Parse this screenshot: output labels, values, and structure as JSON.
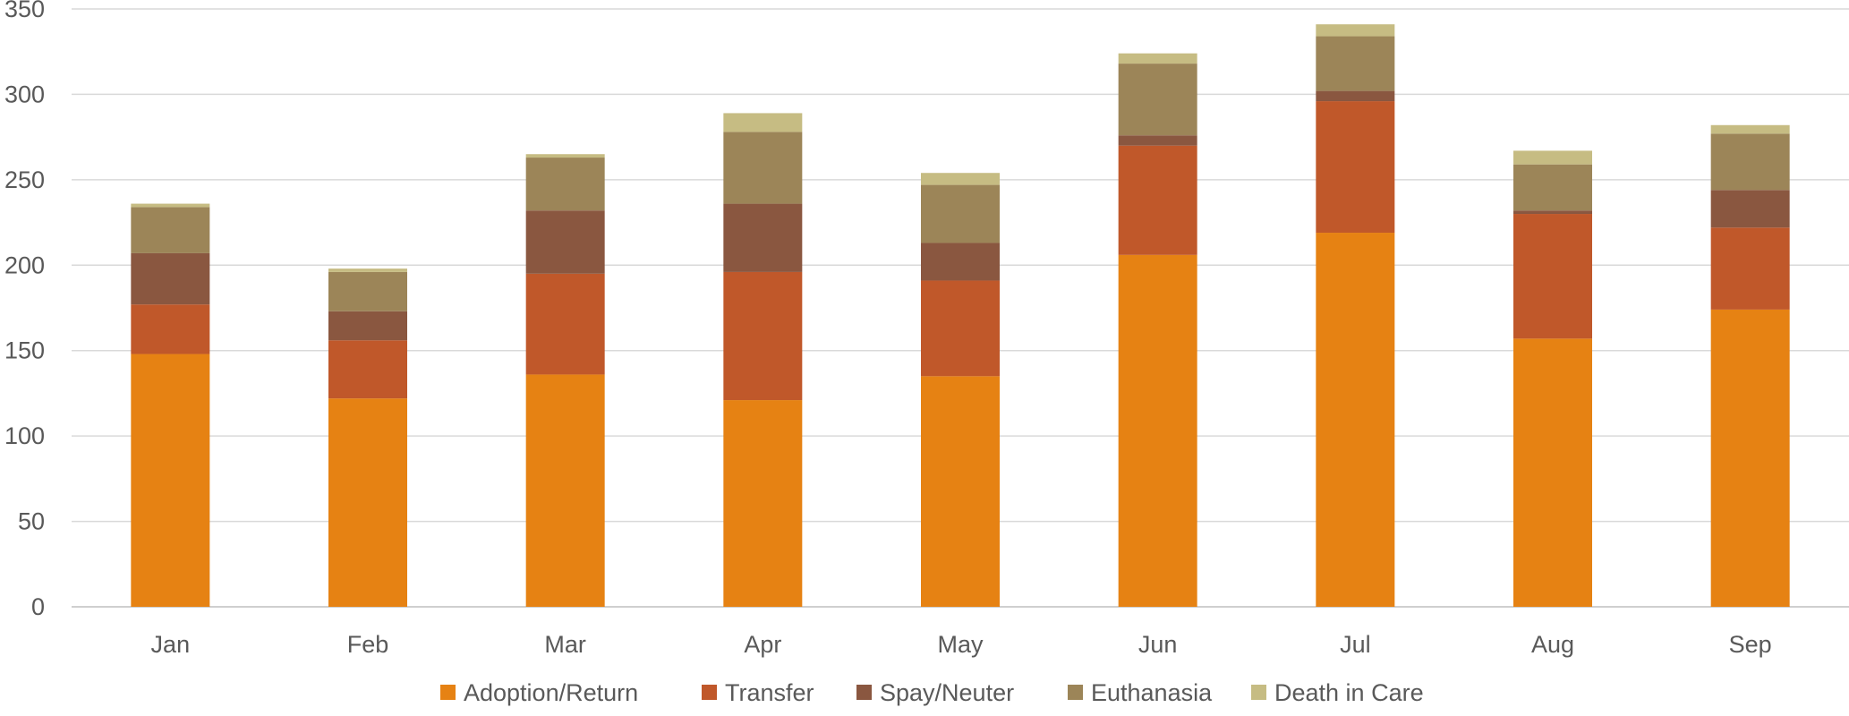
{
  "chart_data": {
    "type": "bar",
    "stacked": true,
    "categories": [
      "Jan",
      "Feb",
      "Mar",
      "Apr",
      "May",
      "Jun",
      "Jul",
      "Aug",
      "Sep"
    ],
    "series": [
      {
        "name": "Adoption/Return",
        "color": "#E68213",
        "values": [
          148,
          122,
          136,
          121,
          135,
          206,
          219,
          157,
          174
        ]
      },
      {
        "name": "Transfer",
        "color": "#C0582A",
        "values": [
          29,
          34,
          59,
          75,
          56,
          64,
          77,
          73,
          48
        ]
      },
      {
        "name": "Spay/Neuter",
        "color": "#8A5740",
        "values": [
          30,
          17,
          37,
          40,
          22,
          6,
          6,
          2,
          22
        ]
      },
      {
        "name": "Euthanasia",
        "color": "#9C8558",
        "values": [
          27,
          23,
          31,
          42,
          34,
          42,
          32,
          27,
          33
        ]
      },
      {
        "name": "Death in Care",
        "color": "#C6BC83",
        "values": [
          2,
          2,
          2,
          11,
          7,
          6,
          7,
          8,
          5
        ]
      }
    ],
    "title": "",
    "xlabel": "",
    "ylabel": "",
    "ylim": [
      0,
      350
    ],
    "yticks": [
      0,
      50,
      100,
      150,
      200,
      250,
      300,
      350
    ],
    "grid": true,
    "legend_position": "bottom"
  }
}
